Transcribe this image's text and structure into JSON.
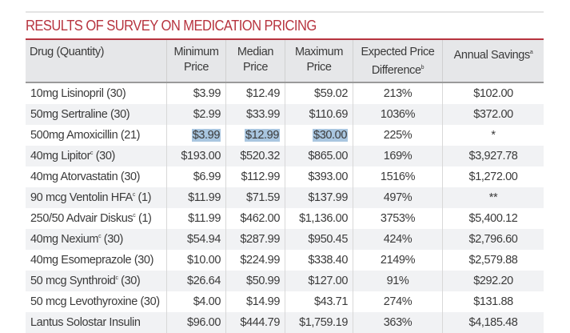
{
  "title": "RESULTS OF SURVEY ON MEDICATION PRICING",
  "headers": [
    {
      "label": "Drug (Quantity)",
      "sup": ""
    },
    {
      "label": "Minimum Price",
      "sup": ""
    },
    {
      "label": "Median Price",
      "sup": ""
    },
    {
      "label": "Maximum Price",
      "sup": ""
    },
    {
      "label": "Expected Price Difference",
      "sup": "b"
    },
    {
      "label": "Annual Savings",
      "sup": "a"
    }
  ],
  "rows": [
    {
      "drug": "10mg Lisinopril",
      "sup": "",
      "qty": " (30)",
      "min": "$3.99",
      "median": "$12.49",
      "max": "$59.02",
      "diff": "213%",
      "savings": "$102.00"
    },
    {
      "drug": "50mg Sertraline",
      "sup": "",
      "qty": " (30)",
      "min": "$2.99",
      "median": "$33.99",
      "max": "$110.69",
      "diff": "1036%",
      "savings": "$372.00"
    },
    {
      "drug": "500mg Amoxicillin",
      "sup": "",
      "qty": " (21)",
      "min": "$3.99",
      "median": "$12.99",
      "max": "$30.00",
      "diff": "225%",
      "savings": "*",
      "selected": true
    },
    {
      "drug": "40mg Lipitor",
      "sup": "c",
      "qty": " (30)",
      "min": "$193.00",
      "median": "$520.32",
      "max": "$865.00",
      "diff": "169%",
      "savings": "$3,927.78"
    },
    {
      "drug": "40mg Atorvastatin",
      "sup": "",
      "qty": " (30)",
      "min": "$6.99",
      "median": "$112.99",
      "max": "$393.00",
      "diff": "1516%",
      "savings": "$1,272.00"
    },
    {
      "drug": "90 mcg Ventolin HFA",
      "sup": "c",
      "qty": " (1)",
      "min": "$11.99",
      "median": "$71.59",
      "max": "$137.99",
      "diff": "497%",
      "savings": "**"
    },
    {
      "drug": "250/50 Advair Diskus",
      "sup": "c",
      "qty": " (1)",
      "min": "$11.99",
      "median": "$462.00",
      "max": "$1,136.00",
      "diff": "3753%",
      "savings": "$5,400.12"
    },
    {
      "drug": "40mg Nexium",
      "sup": "c",
      "qty": " (30)",
      "min": "$54.94",
      "median": "$287.99",
      "max": "$950.45",
      "diff": "424%",
      "savings": "$2,796.60"
    },
    {
      "drug": "40mg Esomeprazole",
      "sup": "",
      "qty": " (30)",
      "min": "$10.00",
      "median": "$224.99",
      "max": "$338.40",
      "diff": "2149%",
      "savings": "$2,579.88"
    },
    {
      "drug": "50 mcg Synthroid",
      "sup": "c",
      "qty": " (30)",
      "min": "$26.64",
      "median": "$50.99",
      "max": "$127.00",
      "diff": "91%",
      "savings": "$292.20"
    },
    {
      "drug": "50 mcg Levothyroxine",
      "sup": "",
      "qty": " (30)",
      "min": "$4.00",
      "median": "$14.99",
      "max": "$43.71",
      "diff": "274%",
      "savings": "$131.88"
    },
    {
      "drug": "Lantus Solostar Insulin",
      "sup": "",
      "qty": "",
      "min": "$96.00",
      "median": "$444.79",
      "max": "$1,759.19",
      "diff": "363%",
      "savings": "$4,185.48"
    }
  ],
  "colors": {
    "accent": "#b7343f",
    "header_bg": "#e6e7e9",
    "stripe": "#f1f2f4",
    "selection": "#a9c6e0"
  }
}
